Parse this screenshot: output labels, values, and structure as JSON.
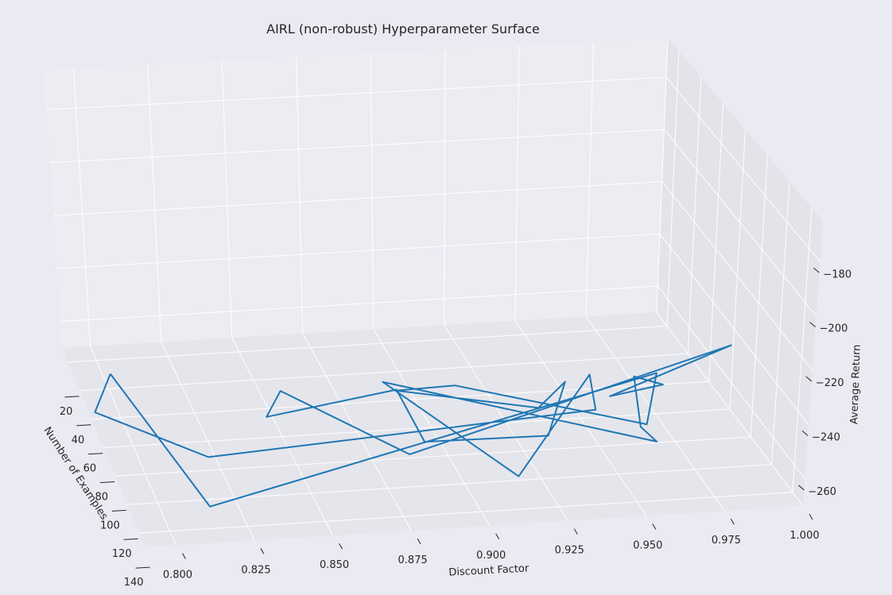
{
  "chart_data": {
    "type": "line",
    "projection": "3d",
    "title": "AIRL (non-robust) Hyperparameter Surface",
    "xlabel": "Discount Factor",
    "ylabel": "Number of Examples",
    "zlabel": "Average Return",
    "xlim": [
      0.79,
      1.0
    ],
    "ylim": [
      10,
      150
    ],
    "zlim": [
      -270,
      -165
    ],
    "x_ticks": [
      "0.800",
      "0.825",
      "0.850",
      "0.875",
      "0.900",
      "0.925",
      "0.950",
      "0.975",
      "1.000"
    ],
    "y_ticks": [
      "20",
      "40",
      "60",
      "80",
      "100",
      "120",
      "140"
    ],
    "z_ticks": [
      "−180",
      "−200",
      "−220",
      "−240",
      "−260"
    ],
    "grid": true,
    "series": [
      {
        "color": "#1f77b4",
        "points": [
          {
            "x": 0.805,
            "y": 20,
            "z": -247
          },
          {
            "x": 0.815,
            "y": 130,
            "z": -267
          },
          {
            "x": 0.985,
            "y": 52,
            "z": -266
          },
          {
            "x": 0.957,
            "y": 130,
            "z": -242
          },
          {
            "x": 0.92,
            "y": 40,
            "z": -195
          },
          {
            "x": 0.9,
            "y": 40,
            "z": -175
          },
          {
            "x": 0.955,
            "y": 20,
            "z": -183
          },
          {
            "x": 0.958,
            "y": 40,
            "z": -200
          },
          {
            "x": 0.925,
            "y": 130,
            "z": -245
          },
          {
            "x": 0.885,
            "y": 130,
            "z": -245
          },
          {
            "x": 0.9,
            "y": 40,
            "z": -180
          },
          {
            "x": 0.86,
            "y": 20,
            "z": -175
          },
          {
            "x": 0.86,
            "y": 40,
            "z": -180
          },
          {
            "x": 0.88,
            "y": 130,
            "z": -250
          },
          {
            "x": 0.995,
            "y": 100,
            "z": -200
          },
          {
            "x": 0.98,
            "y": 20,
            "z": -195
          },
          {
            "x": 0.975,
            "y": 90,
            "z": -230
          },
          {
            "x": 0.985,
            "y": 30,
            "z": -215
          },
          {
            "x": 0.955,
            "y": 130,
            "z": -243
          },
          {
            "x": 0.96,
            "y": 130,
            "z": -250
          },
          {
            "x": 0.895,
            "y": 40,
            "z": -220
          },
          {
            "x": 0.915,
            "y": 130,
            "z": -262
          },
          {
            "x": 0.96,
            "y": 60,
            "z": -216
          },
          {
            "x": 0.975,
            "y": 20,
            "z": -180
          },
          {
            "x": 0.815,
            "y": 130,
            "z": -247
          },
          {
            "x": 0.8,
            "y": 20,
            "z": -185
          },
          {
            "x": 0.805,
            "y": 20,
            "z": -247
          }
        ]
      }
    ]
  }
}
